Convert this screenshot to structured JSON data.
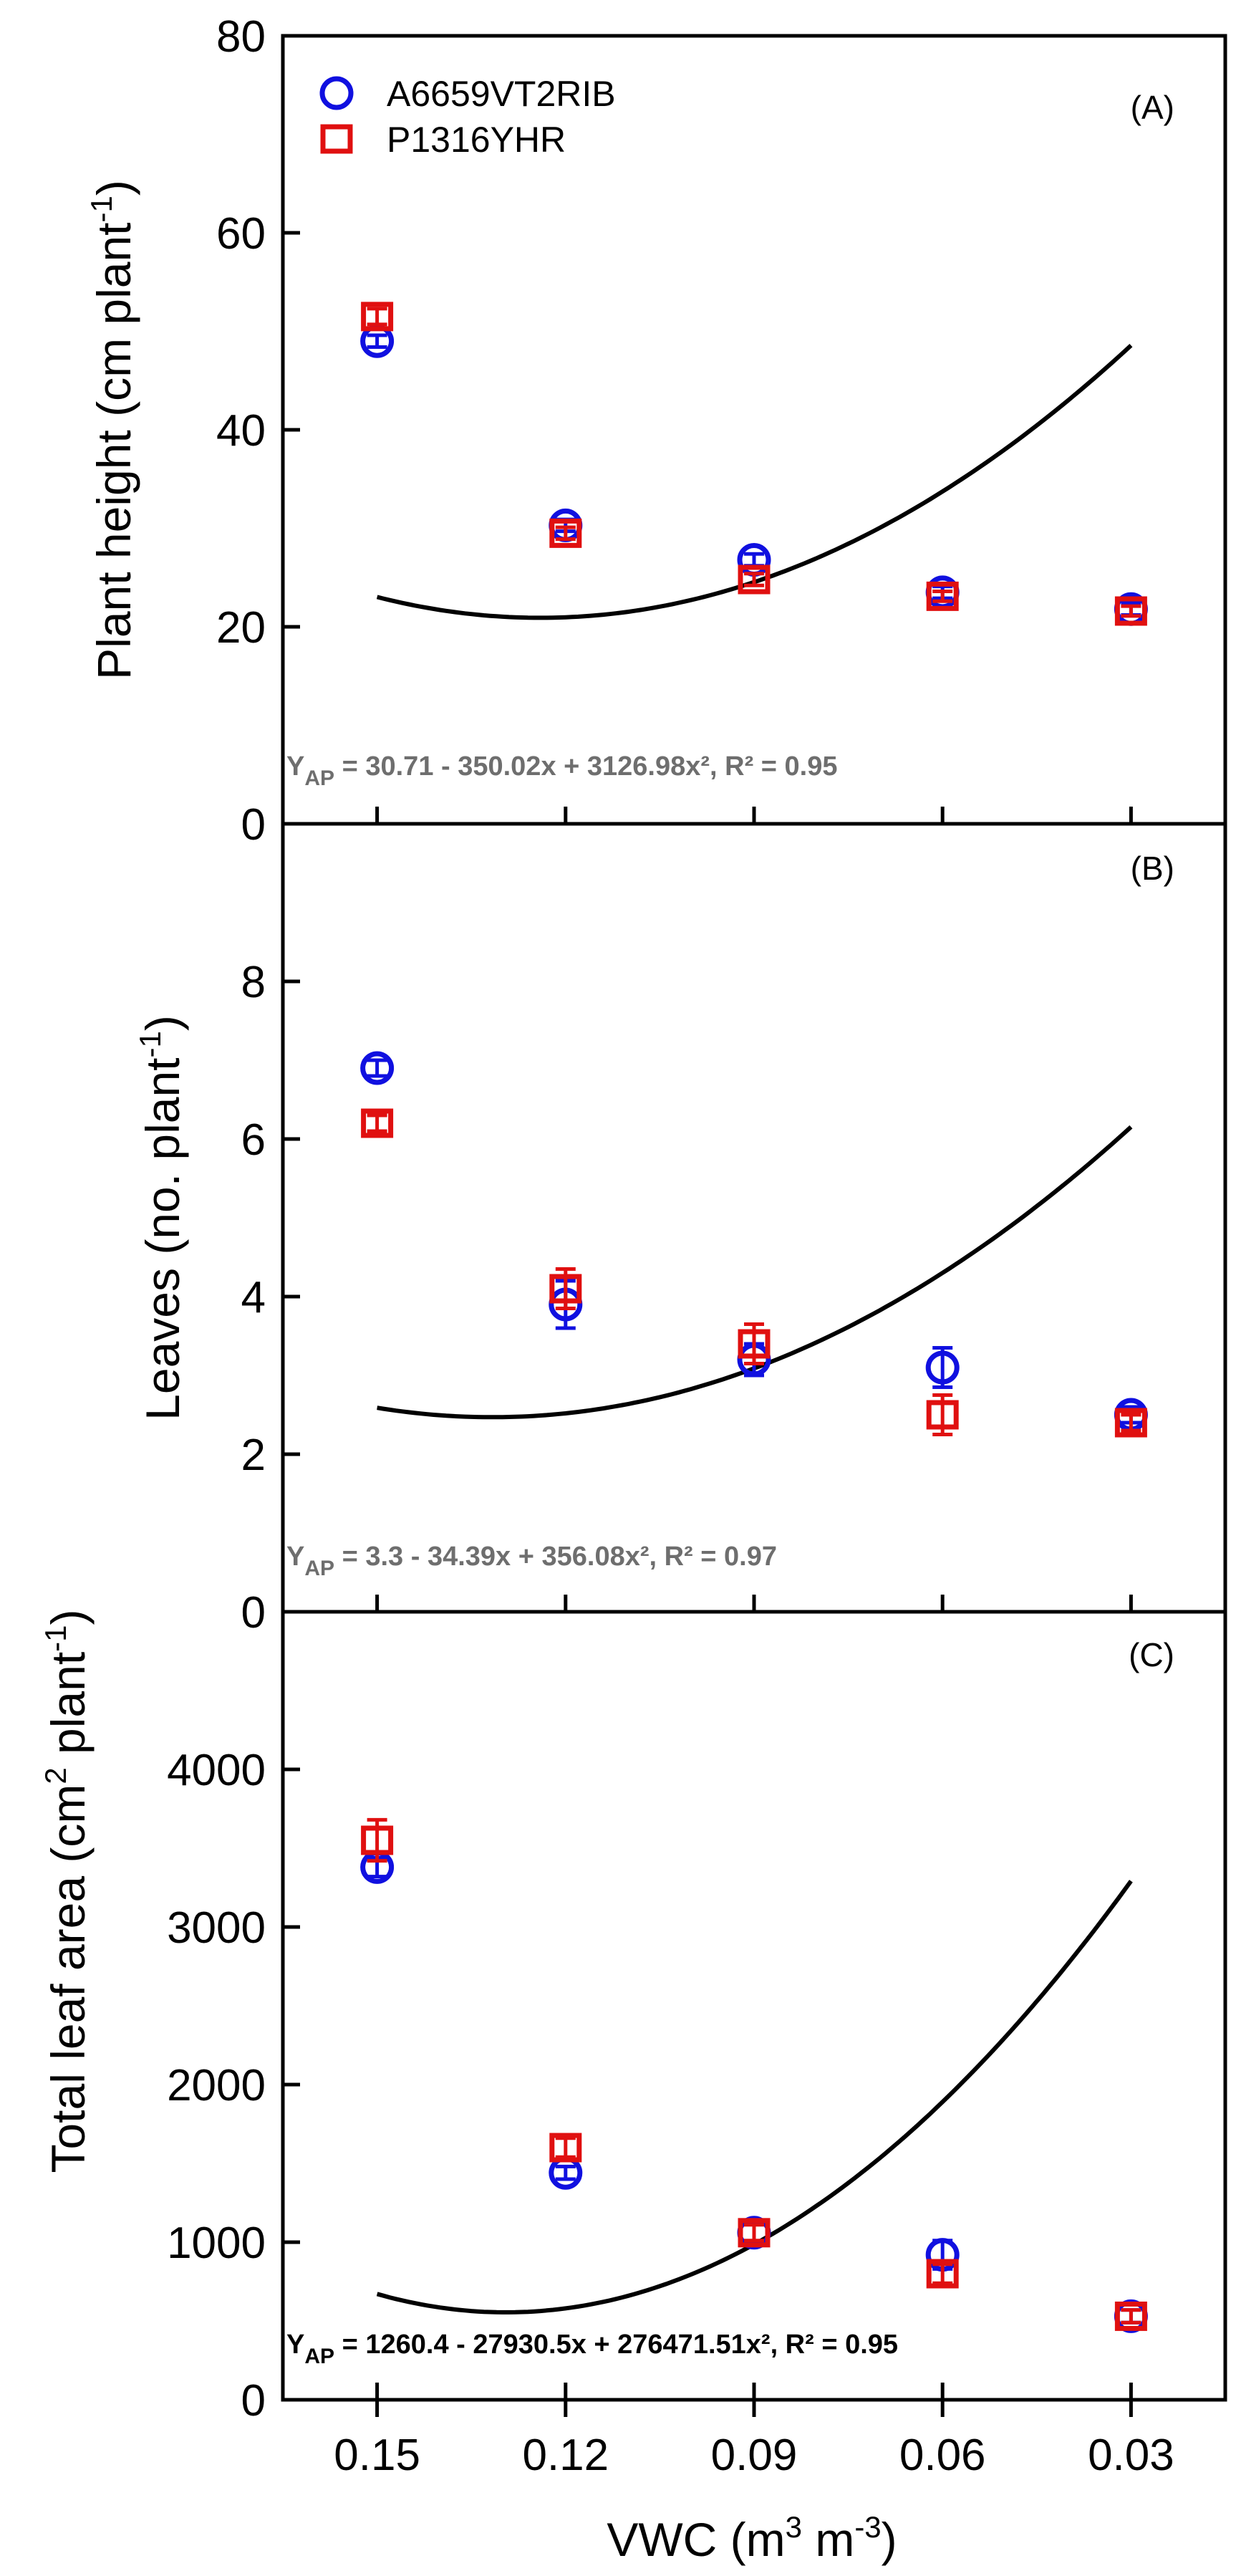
{
  "chart_data": {
    "type": "scatter",
    "x_title_prefix": "VWC (m",
    "x_title_sup1": "3",
    "x_title_mid": " m",
    "x_title_sup2": "-3",
    "x_title_suffix": ")",
    "categories": [
      "0.15",
      "0.12",
      "0.09",
      "0.06",
      "0.03"
    ],
    "x": [
      0.15,
      0.12,
      0.09,
      0.06,
      0.03
    ],
    "legend": {
      "entries": [
        {
          "name": "A6659VT2RIB",
          "marker": "circle",
          "color": "#1010e0"
        },
        {
          "name": "P1316YHR",
          "marker": "square",
          "color": "#e01010"
        }
      ],
      "position": "top-left"
    },
    "fit_color": "#000000",
    "panels": [
      {
        "panel_label": "(A)",
        "ylabel_main": "Plant height (cm plant",
        "ylabel_sup": "-1",
        "ylabel_close": ")",
        "ylim": [
          0,
          80
        ],
        "yticks": [
          0,
          20,
          40,
          60,
          80
        ],
        "ytick_labels": [
          "0",
          "20",
          "40",
          "60",
          "80"
        ],
        "series": [
          {
            "name": "A6659VT2RIB",
            "values": [
              49.0,
              30.3,
              26.8,
              23.5,
              21.8
            ],
            "errors": [
              0.6,
              0.6,
              0.6,
              0.6,
              0.6
            ]
          },
          {
            "name": "P1316YHR",
            "values": [
              51.5,
              29.5,
              24.8,
              23.1,
              21.6
            ],
            "errors": [
              0.8,
              0.6,
              0.6,
              0.5,
              0.5
            ]
          }
        ],
        "fit": {
          "a": 30.71,
          "b": -350.02,
          "c": 3126.98,
          "x_transform": "0.18 - x"
        },
        "equation_y": "Y",
        "equation_sub": "AP",
        "equation_rest": " = 30.71 - 350.02x + 3126.98x², R² = 0.95",
        "equation_color": "#6e6e6e"
      },
      {
        "panel_label": "(B)",
        "ylabel_main": "Leaves (no. plant",
        "ylabel_sup": "-1",
        "ylabel_close": ")",
        "ylim": [
          0,
          10
        ],
        "yticks": [
          0,
          2,
          4,
          6,
          8
        ],
        "ytick_labels": [
          "0",
          "2",
          "4",
          "6",
          "8"
        ],
        "series": [
          {
            "name": "A6659VT2RIB",
            "values": [
              6.9,
              3.9,
              3.2,
              3.1,
              2.5
            ],
            "errors": [
              0.1,
              0.3,
              0.2,
              0.25,
              0.1
            ]
          },
          {
            "name": "P1316YHR",
            "values": [
              6.2,
              4.1,
              3.4,
              2.5,
              2.4
            ],
            "errors": [
              0.1,
              0.25,
              0.25,
              0.25,
              0.1
            ]
          }
        ],
        "fit": {
          "a": 3.3,
          "b": -34.39,
          "c": 356.08,
          "x_transform": "0.18 - x"
        },
        "equation_y": "Y",
        "equation_sub": "AP",
        "equation_rest": " = 3.3 - 34.39x + 356.08x², R² = 0.97",
        "equation_color": "#6e6e6e"
      },
      {
        "panel_label": "(C)",
        "ylabel_main": "Total leaf area (cm",
        "ylabel_sup2": "2",
        "ylabel_mid": " plant",
        "ylabel_sup": "-1",
        "ylabel_close": ")",
        "ylim": [
          0,
          5000
        ],
        "yticks": [
          0,
          1000,
          2000,
          3000,
          4000
        ],
        "ytick_labels": [
          "0",
          "1000",
          "2000",
          "3000",
          "4000"
        ],
        "series": [
          {
            "name": "A6659VT2RIB",
            "values": [
              3380,
              1440,
              1060,
              920,
              530
            ],
            "errors": [
              60,
              40,
              60,
              90,
              40
            ]
          },
          {
            "name": "P1316YHR",
            "values": [
              3550,
              1600,
              1060,
              800,
              530
            ],
            "errors": [
              130,
              60,
              50,
              60,
              40
            ]
          }
        ],
        "fit": {
          "a": 1260.4,
          "b": -27930.5,
          "c": 276471.51,
          "x_transform": "0.18 - x"
        },
        "equation_y": "Y",
        "equation_sub": "AP",
        "equation_rest": " = 1260.4 - 27930.5x + 276471.51x², R² = 0.95",
        "equation_color": "#000000"
      }
    ]
  }
}
